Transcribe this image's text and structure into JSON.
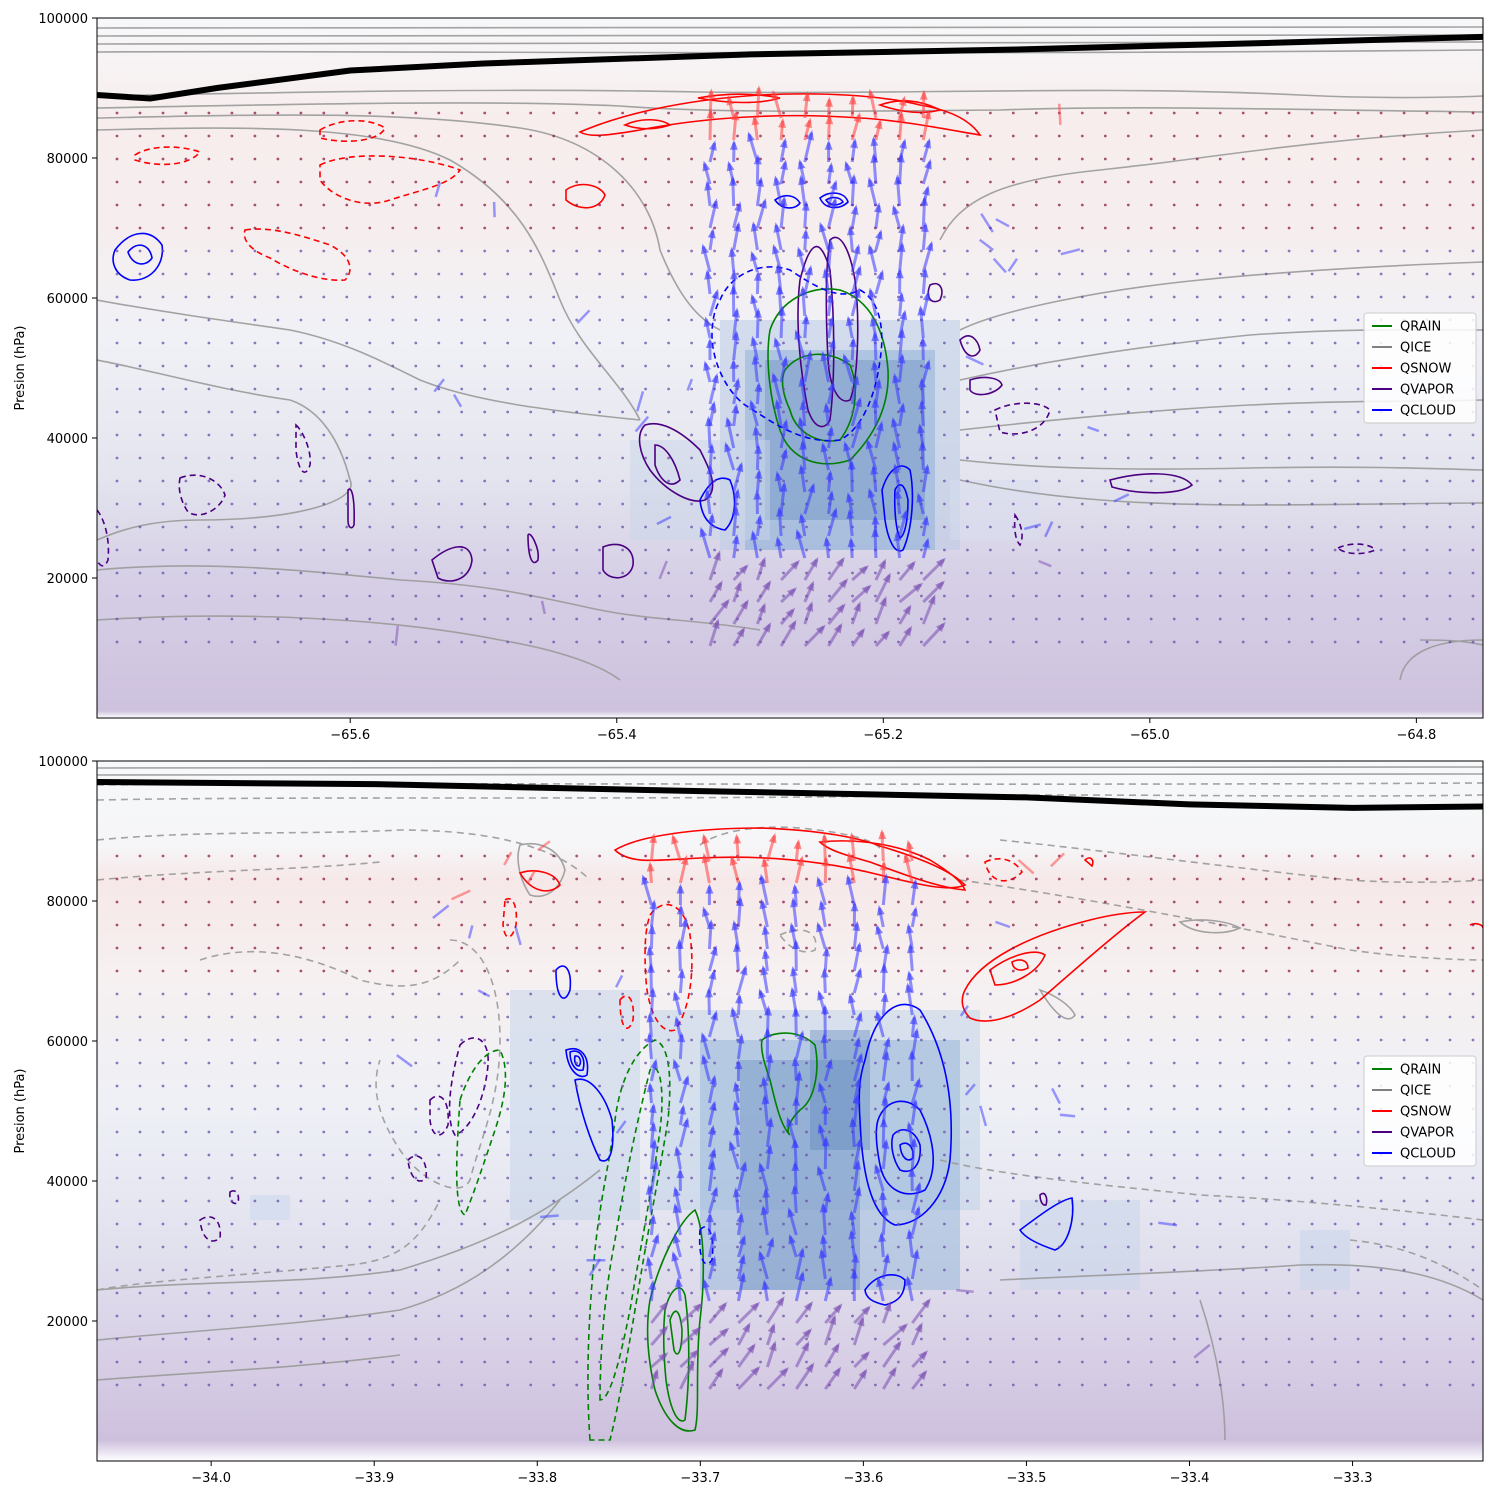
{
  "chart_data": [
    {
      "type": "contour",
      "title": "",
      "xlabel": "",
      "ylabel": "Presion (hPa)",
      "xlim": [
        -65.79,
        -64.75
      ],
      "ylim": [
        100000,
        0
      ],
      "xticks": [
        -65.6,
        -65.4,
        -65.2,
        -65.0,
        -64.8
      ],
      "xtick_labels": [
        "−65.6",
        "−65.4",
        "−65.2",
        "−65.0",
        "−64.8"
      ],
      "yticks": [
        20000,
        40000,
        60000,
        80000,
        100000
      ],
      "ytick_labels": [
        "20000",
        "40000",
        "60000",
        "80000",
        "100000"
      ],
      "legend_position": "center-right",
      "series": [
        {
          "name": "QRAIN",
          "color": "#008000"
        },
        {
          "name": "QICE",
          "color": "#808080"
        },
        {
          "name": "QSNOW",
          "color": "#ff0000"
        },
        {
          "name": "QVAPOR",
          "color": "#4b0082"
        },
        {
          "name": "QCLOUD",
          "color": "#0000ff"
        }
      ],
      "updraft_x_range": [
        -65.33,
        -65.17
      ],
      "surface_line": [
        {
          "x": -65.79,
          "y": 89000
        },
        {
          "x": -65.75,
          "y": 88500
        },
        {
          "x": -65.7,
          "y": 90000
        },
        {
          "x": -65.6,
          "y": 92500
        },
        {
          "x": -65.5,
          "y": 93500
        },
        {
          "x": -65.3,
          "y": 94800
        },
        {
          "x": -65.1,
          "y": 95500
        },
        {
          "x": -64.9,
          "y": 96500
        },
        {
          "x": -64.75,
          "y": 97300
        }
      ]
    },
    {
      "type": "contour",
      "title": "",
      "xlabel": "",
      "ylabel": "Presion (hPa)",
      "xlim": [
        -34.07,
        -33.22
      ],
      "ylim": [
        100000,
        0
      ],
      "xticks": [
        -34.0,
        -33.9,
        -33.8,
        -33.7,
        -33.6,
        -33.5,
        -33.4,
        -33.3
      ],
      "xtick_labels": [
        "−34.0",
        "−33.9",
        "−33.8",
        "−33.7",
        "−33.6",
        "−33.5",
        "−33.4",
        "−33.3"
      ],
      "yticks": [
        20000,
        40000,
        60000,
        80000,
        100000
      ],
      "ytick_labels": [
        "20000",
        "40000",
        "60000",
        "80000",
        "100000"
      ],
      "legend_position": "center-right",
      "series": [
        {
          "name": "QRAIN",
          "color": "#008000"
        },
        {
          "name": "QICE",
          "color": "#808080"
        },
        {
          "name": "QSNOW",
          "color": "#ff0000"
        },
        {
          "name": "QVAPOR",
          "color": "#4b0082"
        },
        {
          "name": "QCLOUD",
          "color": "#0000ff"
        }
      ],
      "updraft_x_range": [
        -33.73,
        -33.57
      ],
      "surface_line": [
        {
          "x": -34.07,
          "y": 97000
        },
        {
          "x": -33.9,
          "y": 96700
        },
        {
          "x": -33.7,
          "y": 95700
        },
        {
          "x": -33.5,
          "y": 94800
        },
        {
          "x": -33.4,
          "y": 93800
        },
        {
          "x": -33.3,
          "y": 93300
        },
        {
          "x": -33.22,
          "y": 93500
        }
      ]
    }
  ]
}
